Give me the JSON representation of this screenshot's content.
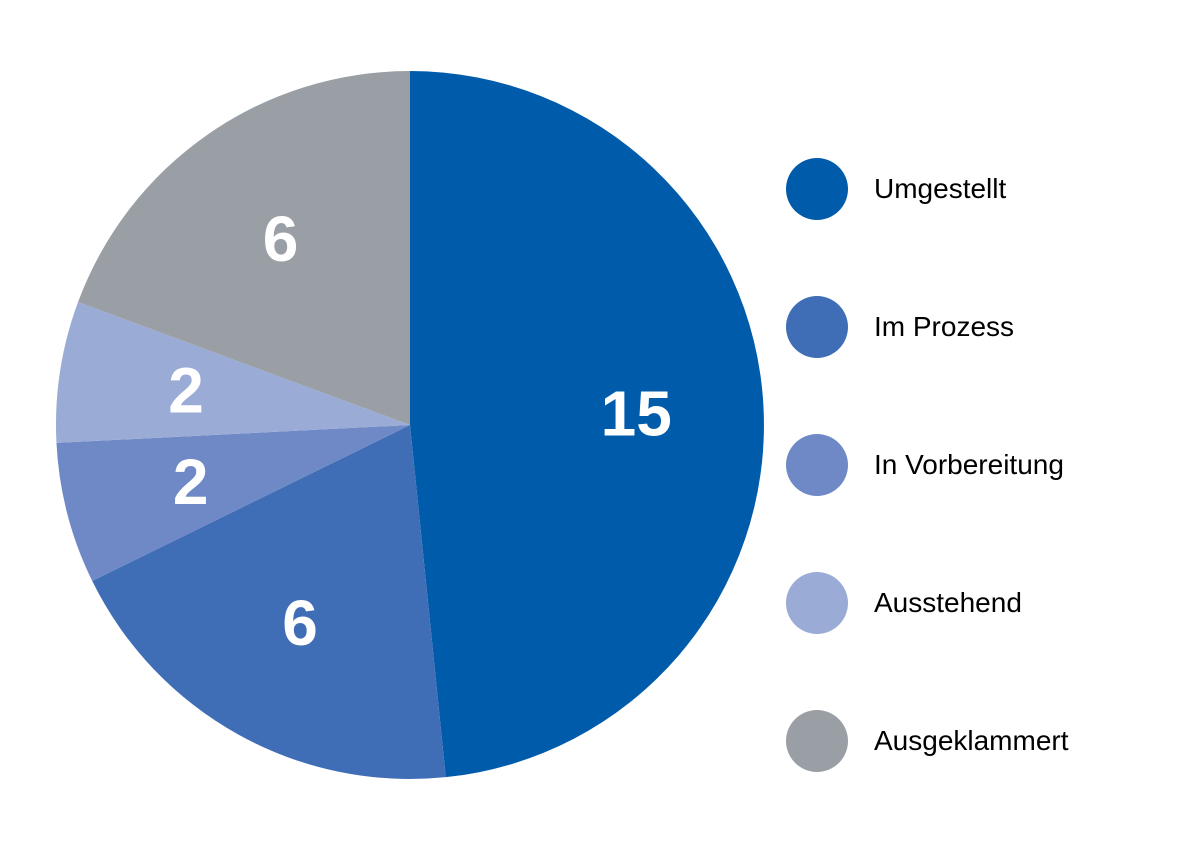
{
  "chart_data": {
    "type": "pie",
    "start_angle_deg": 0,
    "direction": "clockwise",
    "legend_position": "right",
    "slices": [
      {
        "name": "Umgestellt",
        "value": 15,
        "label": "15",
        "color": "#005BAA"
      },
      {
        "name": "Im Prozess",
        "value": 6,
        "label": "6",
        "color": "#406EB6"
      },
      {
        "name": "In Vorbereitung",
        "value": 2,
        "label": "2",
        "color": "#6E89C5"
      },
      {
        "name": "Ausstehend",
        "value": 2,
        "label": "2",
        "color": "#9AABD6"
      },
      {
        "name": "Ausgeklammert",
        "value": 6,
        "label": "6",
        "color": "#9A9FA5"
      }
    ]
  }
}
